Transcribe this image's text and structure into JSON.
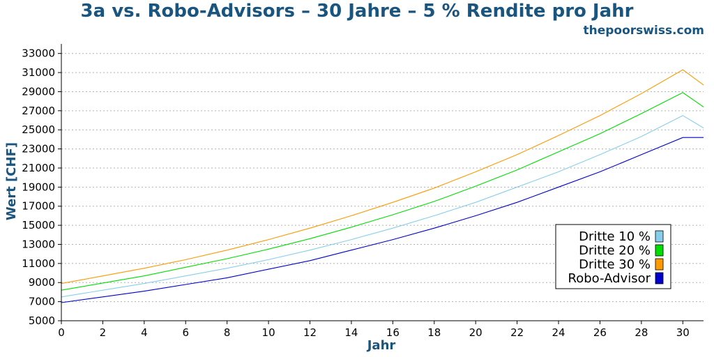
{
  "chart_data": {
    "type": "line",
    "title": "3a vs. Robo-Advisors – 30 Jahre – 5 % Rendite pro Jahr",
    "subtitle": "thepoorswiss.com",
    "xlabel": "Jahr",
    "ylabel": "Wert [CHF]",
    "xlim": [
      0,
      31
    ],
    "ylim": [
      5000,
      34000
    ],
    "xticks": [
      0,
      2,
      4,
      6,
      8,
      10,
      12,
      14,
      16,
      18,
      20,
      22,
      24,
      26,
      28,
      30
    ],
    "yticks": [
      5000,
      7000,
      9000,
      11000,
      13000,
      15000,
      17000,
      19000,
      21000,
      23000,
      25000,
      27000,
      29000,
      31000,
      33000
    ],
    "grid": "horizontal dotted",
    "legend_position": "lower-right",
    "x": [
      0,
      2,
      4,
      6,
      8,
      10,
      12,
      14,
      16,
      18,
      20,
      22,
      24,
      26,
      28,
      30,
      31
    ],
    "series": [
      {
        "name": "Dritte 10 %",
        "color": "#87ceeb",
        "values": [
          7500,
          8200,
          8900,
          9700,
          10500,
          11400,
          12400,
          13500,
          14700,
          16000,
          17400,
          19000,
          20600,
          22400,
          24300,
          26500,
          25200
        ]
      },
      {
        "name": "Dritte 20 %",
        "color": "#00dd00",
        "values": [
          8200,
          8950,
          9700,
          10600,
          11500,
          12500,
          13600,
          14800,
          16100,
          17500,
          19100,
          20800,
          22700,
          24600,
          26700,
          28900,
          27400
        ]
      },
      {
        "name": "Dritte 30 %",
        "color": "#ff9900",
        "values": [
          8900,
          9700,
          10500,
          11400,
          12400,
          13500,
          14700,
          16000,
          17400,
          18900,
          20600,
          22400,
          24400,
          26500,
          28800,
          31300,
          29700
        ]
      },
      {
        "name": "Robo-Advisor",
        "color": "#0000cc",
        "values": [
          6900,
          7500,
          8100,
          8800,
          9500,
          10400,
          11300,
          12400,
          13500,
          14700,
          16000,
          17400,
          19000,
          20600,
          22400,
          24200,
          24200
        ]
      }
    ]
  }
}
